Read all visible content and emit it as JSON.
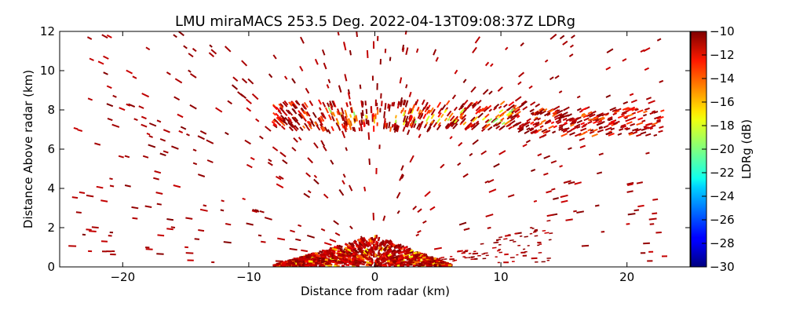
{
  "chart_data": {
    "type": "heatmap",
    "title": "LMU miraMACS 253.5 Deg. 2022-04-13T09:08:37Z  LDRg",
    "xlabel": "Distance from radar (km)",
    "ylabel": "Distance Above radar  (km)",
    "xlim": [
      -25,
      25
    ],
    "ylim": [
      0,
      12
    ],
    "xticks": [
      -20,
      -10,
      0,
      10,
      20
    ],
    "xtick_labels": [
      "−20",
      "−10",
      "0",
      "10",
      "20"
    ],
    "yticks": [
      0,
      2,
      4,
      6,
      8,
      10,
      12
    ],
    "ytick_labels": [
      "0",
      "2",
      "4",
      "6",
      "8",
      "10",
      "12"
    ],
    "colorbar": {
      "label": "LDRg (dB)",
      "range": [
        -30,
        -10
      ],
      "ticks": [
        -10,
        -12,
        -14,
        -16,
        -18,
        -20,
        -22,
        -24,
        -26,
        -28,
        -30
      ],
      "tick_labels": [
        "−10",
        "−12",
        "−14",
        "−16",
        "−18",
        "−20",
        "−22",
        "−24",
        "−26",
        "−28",
        "−30"
      ],
      "colormap": "jet"
    },
    "features": [
      {
        "name": "cloud-layer",
        "x_range_km": [
          -8,
          23
        ],
        "altitude_km": [
          7.0,
          8.4
        ],
        "ldr_db_range": [
          -20,
          -10
        ]
      },
      {
        "name": "near-ground-echo",
        "x_range_km": [
          -8,
          6
        ],
        "altitude_km": [
          0,
          1.6
        ],
        "ldr_db_range": [
          -18,
          -10
        ]
      },
      {
        "name": "sparse-noise",
        "x_range_km": [
          -24,
          23
        ],
        "altitude_km": [
          0,
          12
        ],
        "ldr_db_range": [
          -12,
          -10
        ]
      }
    ]
  }
}
